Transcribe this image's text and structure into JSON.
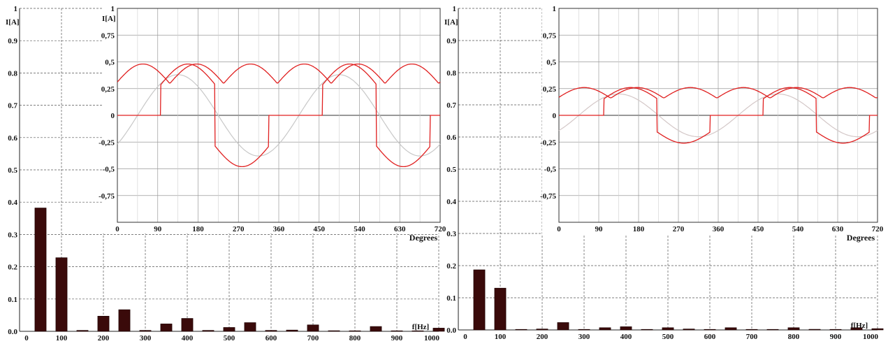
{
  "chart_data": [
    {
      "id": "spectrum-left",
      "type": "bar",
      "ylabel": "I[A]",
      "xlabel": "f[Hz]",
      "ylim": [
        0,
        1
      ],
      "xlim": [
        0,
        1000
      ],
      "grid": true,
      "y_ticks": [
        "0.0",
        "0.1",
        "0.2",
        "0.3",
        "0.4",
        "0.5",
        "0.6",
        "0.7",
        "0.8",
        "0.9",
        "1"
      ],
      "x_ticks": [
        "0",
        "100",
        "200",
        "300",
        "400",
        "500",
        "600",
        "700",
        "800",
        "900",
        "1000"
      ],
      "bar_color": "#3a0a0a",
      "frequencies": [
        50,
        100,
        150,
        200,
        250,
        300,
        350,
        400,
        450,
        500,
        550,
        600,
        650,
        700,
        750,
        800,
        850,
        900,
        950,
        1000
      ],
      "values": [
        0.382,
        0.228,
        0.003,
        0.047,
        0.067,
        0.003,
        0.023,
        0.04,
        0.003,
        0.012,
        0.027,
        0.003,
        0.004,
        0.02,
        0.002,
        0.0,
        0.015,
        0.0,
        0.0,
        0.01
      ]
    },
    {
      "id": "waveform-left",
      "type": "line",
      "ylabel": "I[A]",
      "xlabel": "Degrees",
      "xlim": [
        0,
        720
      ],
      "ylim": [
        -1,
        1
      ],
      "grid": true,
      "y_ticks": [
        "1",
        "0,75",
        "0,5",
        "0,25",
        "0",
        "-0,25",
        "-0,5",
        "-0,75",
        "-1"
      ],
      "x_ticks": [
        "0",
        "90",
        "180",
        "270",
        "360",
        "450",
        "540",
        "630",
        "720"
      ],
      "rectified_amplitude": 0.48,
      "reference_amplitude": 0.38,
      "conduction_edges_deg": [
        97,
        218,
        338,
        458,
        578,
        698
      ],
      "line_color": "#e02020",
      "reference_color": "#c8c8c8"
    },
    {
      "id": "spectrum-right",
      "type": "bar",
      "ylabel": "I[A]",
      "xlabel": "f[Hz]",
      "ylim": [
        0,
        1
      ],
      "xlim": [
        0,
        1000
      ],
      "grid": true,
      "y_ticks": [
        "0.0",
        "0.1",
        "0.2",
        "0.3",
        "0.4",
        "0.5",
        "0.6",
        "0.7",
        "0.8",
        "0.9",
        "1"
      ],
      "x_ticks": [
        "0",
        "100",
        "200",
        "300",
        "400",
        "500",
        "600",
        "700",
        "800",
        "900",
        "1000"
      ],
      "bar_color": "#3a0a0a",
      "frequencies": [
        50,
        100,
        150,
        200,
        250,
        300,
        350,
        400,
        450,
        500,
        550,
        600,
        650,
        700,
        750,
        800,
        850,
        900,
        950,
        1000
      ],
      "values": [
        0.187,
        0.13,
        0.001,
        0.003,
        0.023,
        0.001,
        0.007,
        0.01,
        0.001,
        0.007,
        0.003,
        0.001,
        0.007,
        0.001,
        0.001,
        0.007,
        0.002,
        0.001,
        0.007,
        0.004
      ]
    },
    {
      "id": "waveform-right",
      "type": "line",
      "ylabel": "",
      "xlabel": "Degrees",
      "xlim": [
        0,
        720
      ],
      "ylim": [
        -1,
        1
      ],
      "grid": true,
      "y_ticks": [
        "1",
        "0,75",
        "0,5",
        "0,25",
        "0",
        "-0,25",
        "-0,5",
        "-0,75",
        "-1"
      ],
      "x_ticks": [
        "0",
        "90",
        "180",
        "270",
        "360",
        "450",
        "540",
        "630",
        "720"
      ],
      "rectified_amplitude": 0.26,
      "reference_amplitude": 0.2,
      "conduction_edges_deg": [
        102,
        222,
        342,
        462,
        582,
        702
      ],
      "line_color": "#e02020",
      "reference_color": "#d4c8c8"
    }
  ]
}
